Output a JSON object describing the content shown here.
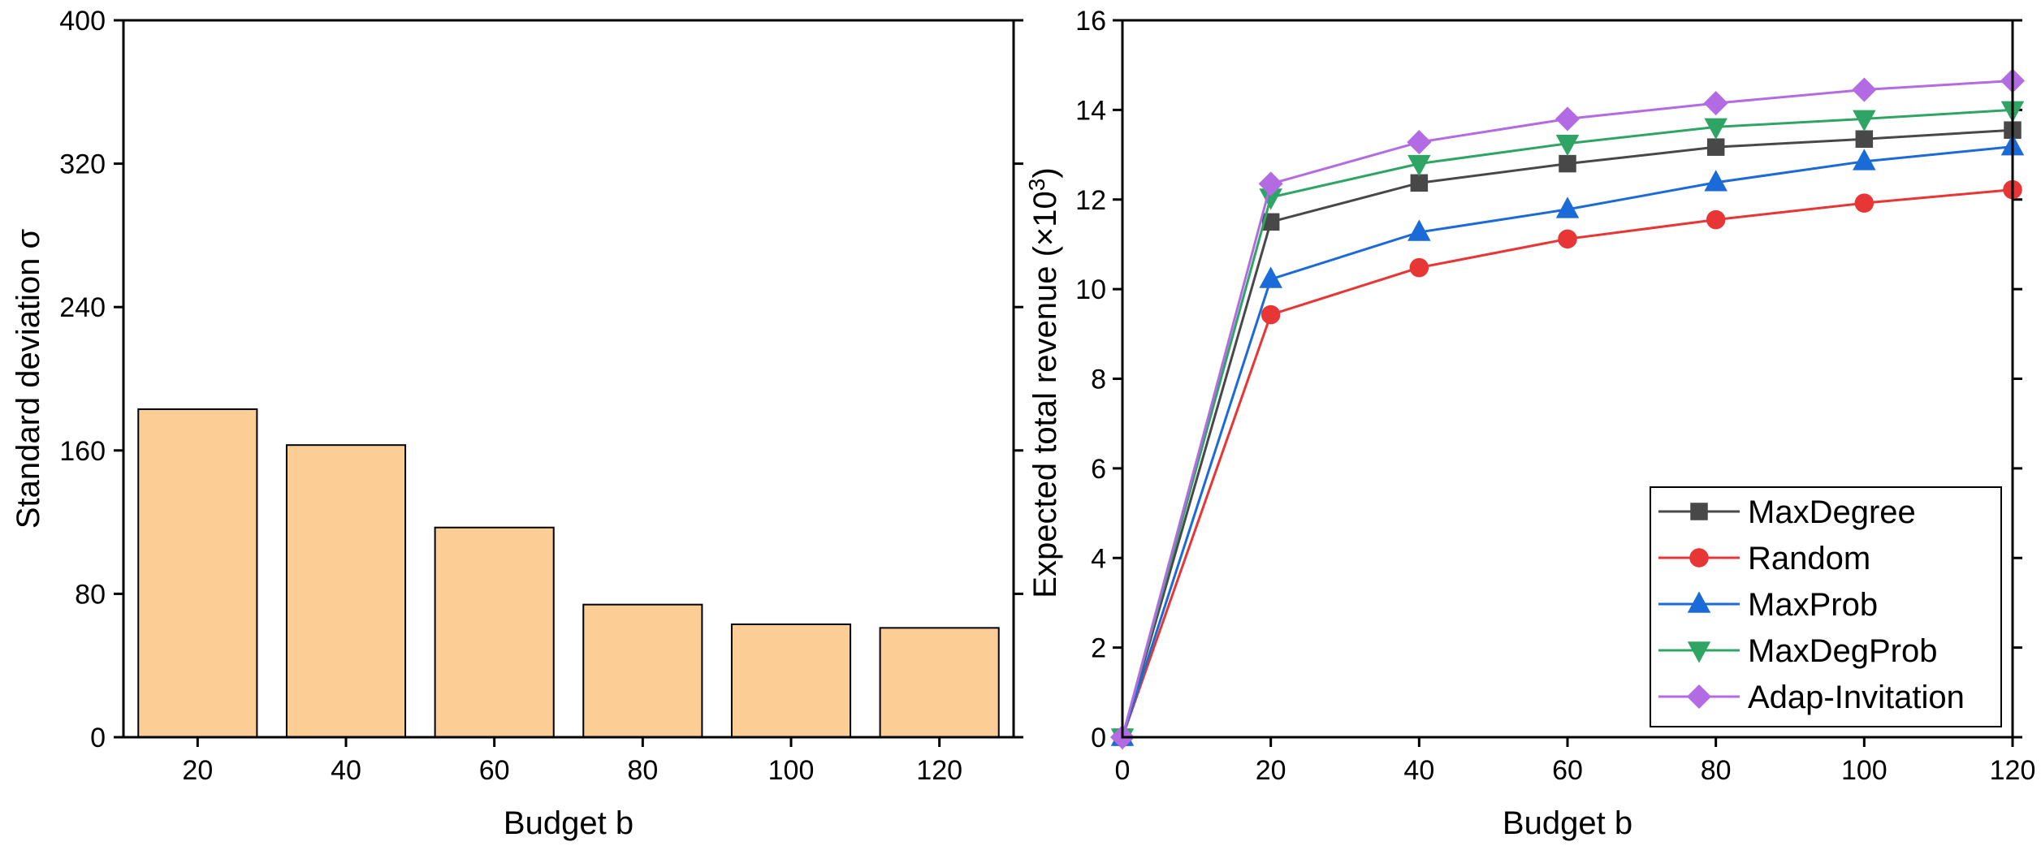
{
  "chart_data": [
    {
      "type": "bar",
      "categories": [
        "20",
        "40",
        "60",
        "80",
        "100",
        "120"
      ],
      "values": [
        183,
        163,
        117,
        74,
        63,
        61
      ],
      "xlabel": "Budget b",
      "ylabel": "Standard deviation σ",
      "ylim": [
        0,
        400
      ],
      "yticks": [
        "0",
        "80",
        "160",
        "240",
        "320",
        "400"
      ],
      "bar_color": "#FDCD96",
      "grid": false
    },
    {
      "type": "line",
      "x": [
        0,
        20,
        40,
        60,
        80,
        100,
        120
      ],
      "xticks": [
        "0",
        "20",
        "40",
        "60",
        "80",
        "100",
        "120"
      ],
      "yticks": [
        "0",
        "2",
        "4",
        "6",
        "8",
        "10",
        "12",
        "14",
        "16"
      ],
      "xlim": [
        0,
        120
      ],
      "ylim": [
        0,
        16
      ],
      "xlabel": "Budget b",
      "ylabel": "Expected total revenue (×10",
      "ylabel_exponent": "3",
      "ylabel_close": ")",
      "legend_position": "bottom-right",
      "grid": false,
      "series": [
        {
          "name": "MaxDegree",
          "color": "#484848",
          "marker": "square",
          "values": [
            0,
            11.5,
            12.37,
            12.8,
            13.17,
            13.35,
            13.55
          ]
        },
        {
          "name": "Random",
          "color": "#E83535",
          "marker": "circle",
          "values": [
            0,
            9.43,
            10.48,
            11.12,
            11.55,
            11.92,
            12.22
          ]
        },
        {
          "name": "MaxProb",
          "color": "#1A6BD8",
          "marker": "triangle-up",
          "values": [
            0,
            10.22,
            11.27,
            11.78,
            12.38,
            12.85,
            13.18
          ]
        },
        {
          "name": "MaxDegProb",
          "color": "#2FA565",
          "marker": "triangle-down",
          "values": [
            0,
            12.05,
            12.8,
            13.25,
            13.62,
            13.8,
            14.0
          ]
        },
        {
          "name": "Adap-Invitation",
          "color": "#B36BE3",
          "marker": "diamond",
          "values": [
            0,
            12.35,
            13.28,
            13.8,
            14.15,
            14.45,
            14.65
          ]
        }
      ]
    }
  ]
}
